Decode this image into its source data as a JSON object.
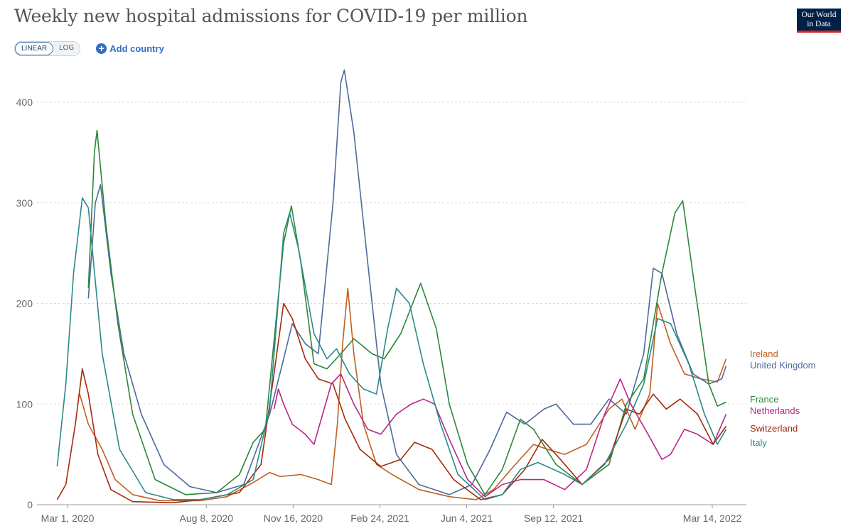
{
  "header": {
    "title": "Weekly new hospital admissions for COVID-19 per million",
    "logo_line1": "Our World",
    "logo_line2": "in Data"
  },
  "controls": {
    "linear_label": "LINEAR",
    "log_label": "LOG",
    "add_country_label": "Add country",
    "plus_glyph": "+"
  },
  "colors": {
    "ireland": "#c15f21",
    "united_kingdom": "#4c6a9c",
    "france": "#2c8737",
    "netherlands": "#b8278a",
    "switzerland": "#a52a0a",
    "italy": "#2a8a86"
  },
  "chart_data": {
    "type": "line",
    "title": "Weekly new hospital admissions for COVID-19 per million",
    "xlabel": "",
    "ylabel": "",
    "ylim": [
      0,
      440
    ],
    "y_ticks": [
      0,
      100,
      200,
      300,
      400
    ],
    "x_ticks": [
      {
        "date": "2020-03-01",
        "label": "Mar 1, 2020"
      },
      {
        "date": "2020-08-08",
        "label": "Aug 8, 2020"
      },
      {
        "date": "2020-11-16",
        "label": "Nov 16, 2020"
      },
      {
        "date": "2021-02-24",
        "label": "Feb 24, 2021"
      },
      {
        "date": "2021-06-04",
        "label": "Jun 4, 2021"
      },
      {
        "date": "2021-09-12",
        "label": "Sep 12, 2021"
      },
      {
        "date": "2022-03-14",
        "label": "Mar 14, 2022"
      }
    ],
    "x_range": [
      "2020-02-16",
      "2022-04-12"
    ],
    "grid": true,
    "legend": "right-end labels",
    "series": [
      {
        "name": "Ireland",
        "color": "#c15f21",
        "points": [
          [
            "2020-03-15",
            110
          ],
          [
            "2020-03-25",
            80
          ],
          [
            "2020-04-10",
            55
          ],
          [
            "2020-04-25",
            25
          ],
          [
            "2020-05-15",
            10
          ],
          [
            "2020-06-15",
            4
          ],
          [
            "2020-08-01",
            4
          ],
          [
            "2020-09-01",
            8
          ],
          [
            "2020-10-01",
            22
          ],
          [
            "2020-10-20",
            32
          ],
          [
            "2020-11-01",
            28
          ],
          [
            "2020-11-25",
            30
          ],
          [
            "2020-12-15",
            25
          ],
          [
            "2020-12-30",
            20
          ],
          [
            "2021-01-06",
            80
          ],
          [
            "2021-01-12",
            160
          ],
          [
            "2021-01-18",
            215
          ],
          [
            "2021-01-25",
            150
          ],
          [
            "2021-02-05",
            80
          ],
          [
            "2021-02-20",
            40
          ],
          [
            "2021-03-10",
            30
          ],
          [
            "2021-04-10",
            15
          ],
          [
            "2021-05-15",
            8
          ],
          [
            "2021-06-15",
            5
          ],
          [
            "2021-07-05",
            15
          ],
          [
            "2021-07-25",
            35
          ],
          [
            "2021-08-20",
            60
          ],
          [
            "2021-09-05",
            55
          ],
          [
            "2021-09-25",
            50
          ],
          [
            "2021-10-20",
            60
          ],
          [
            "2021-11-15",
            95
          ],
          [
            "2021-11-30",
            105
          ],
          [
            "2021-12-15",
            75
          ],
          [
            "2022-01-01",
            110
          ],
          [
            "2022-01-10",
            200
          ],
          [
            "2022-01-25",
            160
          ],
          [
            "2022-02-10",
            130
          ],
          [
            "2022-03-01",
            125
          ],
          [
            "2022-03-20",
            122
          ],
          [
            "2022-03-30",
            145
          ]
        ]
      },
      {
        "name": "United Kingdom",
        "color": "#4c6a9c",
        "points": [
          [
            "2020-03-25",
            205
          ],
          [
            "2020-04-02",
            300
          ],
          [
            "2020-04-08",
            318
          ],
          [
            "2020-04-20",
            230
          ],
          [
            "2020-05-05",
            150
          ],
          [
            "2020-05-25",
            90
          ],
          [
            "2020-06-20",
            40
          ],
          [
            "2020-07-20",
            18
          ],
          [
            "2020-08-20",
            12
          ],
          [
            "2020-09-20",
            20
          ],
          [
            "2020-10-20",
            90
          ],
          [
            "2020-11-05",
            145
          ],
          [
            "2020-11-15",
            180
          ],
          [
            "2020-11-30",
            160
          ],
          [
            "2020-12-15",
            150
          ],
          [
            "2021-01-01",
            300
          ],
          [
            "2021-01-10",
            420
          ],
          [
            "2021-01-14",
            432
          ],
          [
            "2021-01-25",
            370
          ],
          [
            "2021-02-10",
            240
          ],
          [
            "2021-02-25",
            120
          ],
          [
            "2021-03-15",
            50
          ],
          [
            "2021-04-10",
            20
          ],
          [
            "2021-05-15",
            10
          ],
          [
            "2021-06-10",
            20
          ],
          [
            "2021-07-01",
            55
          ],
          [
            "2021-07-20",
            92
          ],
          [
            "2021-08-10",
            80
          ],
          [
            "2021-09-01",
            95
          ],
          [
            "2021-09-15",
            100
          ],
          [
            "2021-10-05",
            80
          ],
          [
            "2021-10-25",
            80
          ],
          [
            "2021-11-15",
            105
          ],
          [
            "2021-12-05",
            90
          ],
          [
            "2021-12-25",
            150
          ],
          [
            "2022-01-05",
            235
          ],
          [
            "2022-01-15",
            230
          ],
          [
            "2022-02-01",
            170
          ],
          [
            "2022-02-20",
            130
          ],
          [
            "2022-03-10",
            120
          ],
          [
            "2022-03-25",
            125
          ],
          [
            "2022-03-30",
            138
          ]
        ]
      },
      {
        "name": "France",
        "color": "#2c8737",
        "points": [
          [
            "2020-03-25",
            215
          ],
          [
            "2020-04-01",
            350
          ],
          [
            "2020-04-04",
            372
          ],
          [
            "2020-04-14",
            280
          ],
          [
            "2020-04-28",
            180
          ],
          [
            "2020-05-15",
            90
          ],
          [
            "2020-06-10",
            25
          ],
          [
            "2020-07-15",
            10
          ],
          [
            "2020-08-20",
            12
          ],
          [
            "2020-09-15",
            30
          ],
          [
            "2020-10-01",
            62
          ],
          [
            "2020-10-15",
            75
          ],
          [
            "2020-11-05",
            260
          ],
          [
            "2020-11-14",
            297
          ],
          [
            "2020-11-25",
            240
          ],
          [
            "2020-12-10",
            140
          ],
          [
            "2020-12-25",
            135
          ],
          [
            "2021-01-10",
            150
          ],
          [
            "2021-01-25",
            165
          ],
          [
            "2021-02-15",
            150
          ],
          [
            "2021-03-01",
            145
          ],
          [
            "2021-03-20",
            170
          ],
          [
            "2021-04-05",
            205
          ],
          [
            "2021-04-12",
            220
          ],
          [
            "2021-04-30",
            175
          ],
          [
            "2021-05-15",
            100
          ],
          [
            "2021-06-05",
            40
          ],
          [
            "2021-06-25",
            10
          ],
          [
            "2021-07-15",
            35
          ],
          [
            "2021-08-05",
            85
          ],
          [
            "2021-08-20",
            75
          ],
          [
            "2021-09-15",
            40
          ],
          [
            "2021-10-15",
            20
          ],
          [
            "2021-11-15",
            40
          ],
          [
            "2021-12-05",
            100
          ],
          [
            "2021-12-25",
            125
          ],
          [
            "2022-01-15",
            230
          ],
          [
            "2022-01-30",
            290
          ],
          [
            "2022-02-08",
            302
          ],
          [
            "2022-02-22",
            215
          ],
          [
            "2022-03-10",
            120
          ],
          [
            "2022-03-20",
            98
          ],
          [
            "2022-03-30",
            102
          ]
        ]
      },
      {
        "name": "Netherlands",
        "color": "#b8278a",
        "points": [
          [
            "2020-10-25",
            95
          ],
          [
            "2020-10-30",
            115
          ],
          [
            "2020-11-05",
            100
          ],
          [
            "2020-11-15",
            80
          ],
          [
            "2020-11-30",
            70
          ],
          [
            "2020-12-10",
            60
          ],
          [
            "2020-12-30",
            120
          ],
          [
            "2021-01-10",
            130
          ],
          [
            "2021-01-25",
            100
          ],
          [
            "2021-02-10",
            75
          ],
          [
            "2021-02-25",
            70
          ],
          [
            "2021-03-15",
            90
          ],
          [
            "2021-04-01",
            100
          ],
          [
            "2021-04-15",
            105
          ],
          [
            "2021-04-28",
            100
          ],
          [
            "2021-05-15",
            65
          ],
          [
            "2021-06-05",
            25
          ],
          [
            "2021-06-25",
            8
          ],
          [
            "2021-07-15",
            20
          ],
          [
            "2021-08-05",
            25
          ],
          [
            "2021-09-01",
            25
          ],
          [
            "2021-09-25",
            15
          ],
          [
            "2021-10-20",
            35
          ],
          [
            "2021-11-10",
            90
          ],
          [
            "2021-11-28",
            125
          ],
          [
            "2021-12-10",
            100
          ],
          [
            "2021-12-30",
            70
          ],
          [
            "2022-01-15",
            45
          ],
          [
            "2022-01-25",
            50
          ],
          [
            "2022-02-10",
            75
          ],
          [
            "2022-02-25",
            70
          ],
          [
            "2022-03-15",
            60
          ],
          [
            "2022-03-30",
            90
          ]
        ]
      },
      {
        "name": "Switzerland",
        "color": "#a52a0a",
        "points": [
          [
            "2020-02-18",
            5
          ],
          [
            "2020-02-28",
            20
          ],
          [
            "2020-03-10",
            80
          ],
          [
            "2020-03-18",
            135
          ],
          [
            "2020-03-25",
            110
          ],
          [
            "2020-04-05",
            50
          ],
          [
            "2020-04-20",
            15
          ],
          [
            "2020-05-15",
            3
          ],
          [
            "2020-07-01",
            2
          ],
          [
            "2020-08-01",
            5
          ],
          [
            "2020-09-15",
            12
          ],
          [
            "2020-10-10",
            40
          ],
          [
            "2020-10-25",
            130
          ],
          [
            "2020-11-05",
            200
          ],
          [
            "2020-11-15",
            185
          ],
          [
            "2020-11-30",
            145
          ],
          [
            "2020-12-15",
            125
          ],
          [
            "2021-01-01",
            120
          ],
          [
            "2021-01-15",
            85
          ],
          [
            "2021-02-01",
            55
          ],
          [
            "2021-02-25",
            38
          ],
          [
            "2021-03-20",
            45
          ],
          [
            "2021-04-05",
            62
          ],
          [
            "2021-04-25",
            55
          ],
          [
            "2021-05-20",
            25
          ],
          [
            "2021-06-20",
            5
          ],
          [
            "2021-07-15",
            10
          ],
          [
            "2021-08-10",
            35
          ],
          [
            "2021-08-30",
            65
          ],
          [
            "2021-09-20",
            45
          ],
          [
            "2021-10-15",
            20
          ],
          [
            "2021-11-15",
            45
          ],
          [
            "2021-12-05",
            95
          ],
          [
            "2021-12-20",
            90
          ],
          [
            "2022-01-05",
            110
          ],
          [
            "2022-01-20",
            95
          ],
          [
            "2022-02-05",
            105
          ],
          [
            "2022-02-25",
            90
          ],
          [
            "2022-03-15",
            60
          ],
          [
            "2022-03-30",
            78
          ]
        ]
      },
      {
        "name": "Italy",
        "color": "#2a8a86",
        "points": [
          [
            "2020-02-18",
            38
          ],
          [
            "2020-02-28",
            120
          ],
          [
            "2020-03-08",
            230
          ],
          [
            "2020-03-18",
            305
          ],
          [
            "2020-03-25",
            295
          ],
          [
            "2020-04-10",
            150
          ],
          [
            "2020-04-30",
            55
          ],
          [
            "2020-05-30",
            12
          ],
          [
            "2020-07-01",
            5
          ],
          [
            "2020-08-01",
            5
          ],
          [
            "2020-09-01",
            10
          ],
          [
            "2020-10-01",
            25
          ],
          [
            "2020-10-20",
            95
          ],
          [
            "2020-11-05",
            270
          ],
          [
            "2020-11-12",
            290
          ],
          [
            "2020-11-22",
            255
          ],
          [
            "2020-12-10",
            170
          ],
          [
            "2020-12-25",
            145
          ],
          [
            "2021-01-05",
            155
          ],
          [
            "2021-01-20",
            130
          ],
          [
            "2021-02-05",
            115
          ],
          [
            "2021-02-20",
            110
          ],
          [
            "2021-03-05",
            175
          ],
          [
            "2021-03-15",
            215
          ],
          [
            "2021-03-30",
            200
          ],
          [
            "2021-04-15",
            140
          ],
          [
            "2021-05-05",
            80
          ],
          [
            "2021-05-25",
            30
          ],
          [
            "2021-06-25",
            5
          ],
          [
            "2021-07-15",
            10
          ],
          [
            "2021-08-05",
            35
          ],
          [
            "2021-08-25",
            42
          ],
          [
            "2021-09-25",
            30
          ],
          [
            "2021-10-15",
            20
          ],
          [
            "2021-11-10",
            40
          ],
          [
            "2021-12-05",
            80
          ],
          [
            "2021-12-25",
            120
          ],
          [
            "2022-01-10",
            185
          ],
          [
            "2022-01-25",
            180
          ],
          [
            "2022-02-15",
            140
          ],
          [
            "2022-03-05",
            90
          ],
          [
            "2022-03-20",
            60
          ],
          [
            "2022-03-30",
            75
          ]
        ]
      }
    ]
  }
}
